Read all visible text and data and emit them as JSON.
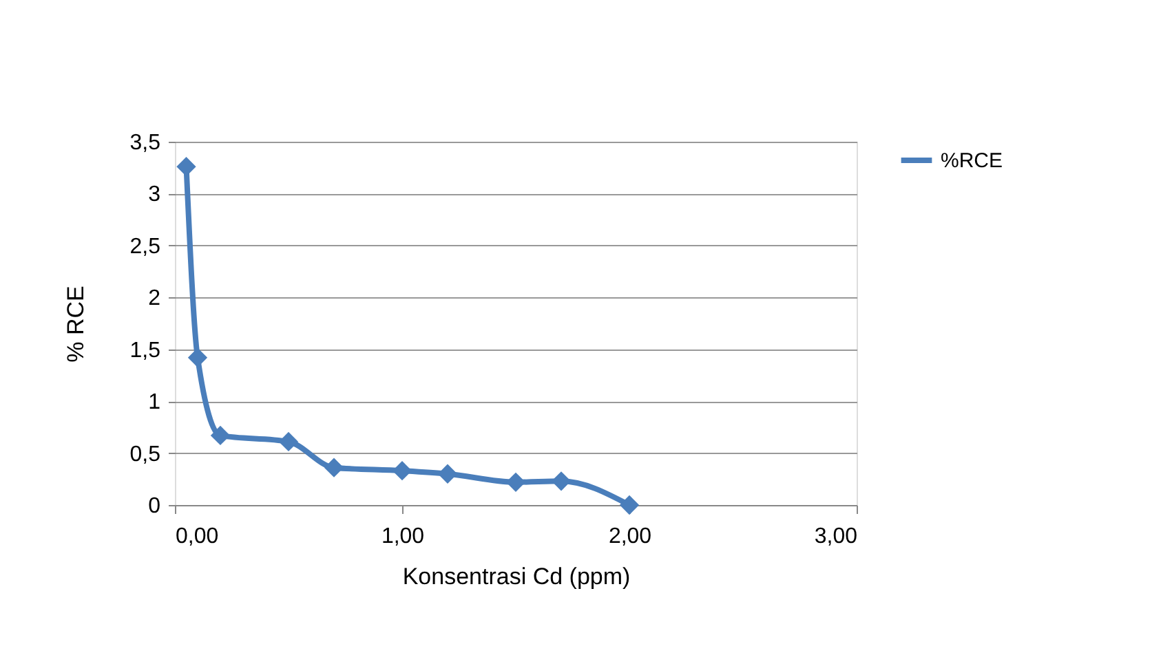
{
  "chart_data": {
    "type": "line",
    "xlabel": "Konsentrasi  Cd (ppm)",
    "ylabel": "% RCE",
    "x": [
      0.05,
      0.1,
      0.2,
      0.5,
      0.7,
      1.0,
      1.2,
      1.5,
      1.7,
      2.0
    ],
    "series": [
      {
        "name": "%RCE",
        "color": "#4a7ebb",
        "values": [
          3.26,
          1.42,
          0.67,
          0.61,
          0.36,
          0.33,
          0.3,
          0.22,
          0.23,
          0.0
        ]
      }
    ],
    "xlim": [
      0,
      3
    ],
    "xticks": [
      {
        "value": 0,
        "label": "0,00"
      },
      {
        "value": 1,
        "label": "1,00"
      },
      {
        "value": 2,
        "label": "2,00"
      },
      {
        "value": 3,
        "label": "3,00"
      }
    ],
    "ylim": [
      0,
      3.5
    ],
    "yticks": [
      0,
      {
        "value": 0.5,
        "label": "0,5"
      },
      1,
      {
        "value": 1.5,
        "label": "1,5"
      },
      2,
      {
        "value": 2.5,
        "label": "2,5"
      },
      3,
      {
        "value": 3.5,
        "label": "3,5"
      }
    ],
    "grid": "y",
    "legend": "right",
    "marker": "diamond",
    "line_style": "solid"
  }
}
